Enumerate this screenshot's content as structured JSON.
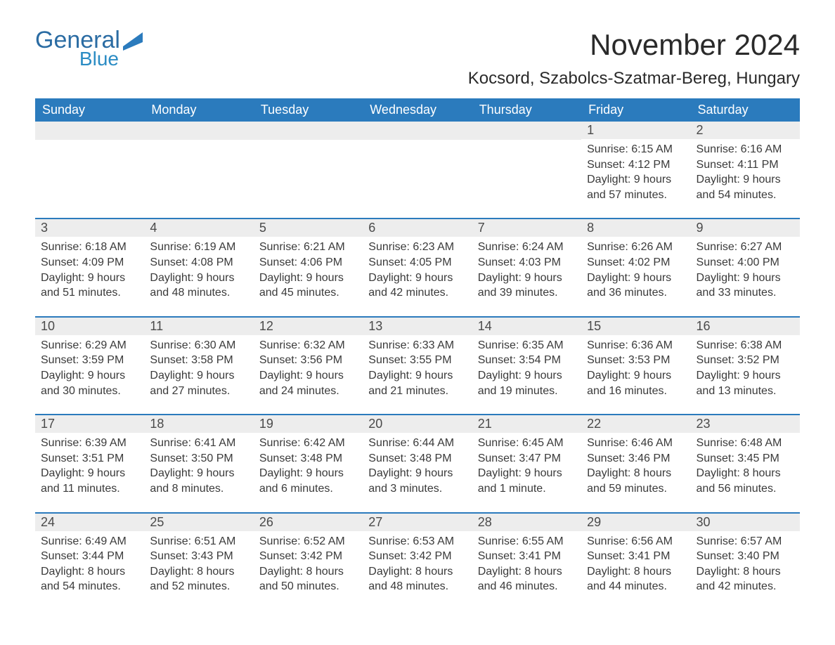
{
  "brand": {
    "name1": "General",
    "name2": "Blue",
    "color1": "#2b6ca3",
    "color2": "#2b8cc4"
  },
  "title": "November 2024",
  "location": "Kocsord, Szabolcs-Szatmar-Bereg, Hungary",
  "accent_color": "#2b7bbd",
  "stripe_color": "#ededed",
  "day_names": [
    "Sunday",
    "Monday",
    "Tuesday",
    "Wednesday",
    "Thursday",
    "Friday",
    "Saturday"
  ],
  "weeks": [
    [
      null,
      null,
      null,
      null,
      null,
      {
        "n": "1",
        "sunrise": "Sunrise: 6:15 AM",
        "sunset": "Sunset: 4:12 PM",
        "dl1": "Daylight: 9 hours",
        "dl2": "and 57 minutes."
      },
      {
        "n": "2",
        "sunrise": "Sunrise: 6:16 AM",
        "sunset": "Sunset: 4:11 PM",
        "dl1": "Daylight: 9 hours",
        "dl2": "and 54 minutes."
      }
    ],
    [
      {
        "n": "3",
        "sunrise": "Sunrise: 6:18 AM",
        "sunset": "Sunset: 4:09 PM",
        "dl1": "Daylight: 9 hours",
        "dl2": "and 51 minutes."
      },
      {
        "n": "4",
        "sunrise": "Sunrise: 6:19 AM",
        "sunset": "Sunset: 4:08 PM",
        "dl1": "Daylight: 9 hours",
        "dl2": "and 48 minutes."
      },
      {
        "n": "5",
        "sunrise": "Sunrise: 6:21 AM",
        "sunset": "Sunset: 4:06 PM",
        "dl1": "Daylight: 9 hours",
        "dl2": "and 45 minutes."
      },
      {
        "n": "6",
        "sunrise": "Sunrise: 6:23 AM",
        "sunset": "Sunset: 4:05 PM",
        "dl1": "Daylight: 9 hours",
        "dl2": "and 42 minutes."
      },
      {
        "n": "7",
        "sunrise": "Sunrise: 6:24 AM",
        "sunset": "Sunset: 4:03 PM",
        "dl1": "Daylight: 9 hours",
        "dl2": "and 39 minutes."
      },
      {
        "n": "8",
        "sunrise": "Sunrise: 6:26 AM",
        "sunset": "Sunset: 4:02 PM",
        "dl1": "Daylight: 9 hours",
        "dl2": "and 36 minutes."
      },
      {
        "n": "9",
        "sunrise": "Sunrise: 6:27 AM",
        "sunset": "Sunset: 4:00 PM",
        "dl1": "Daylight: 9 hours",
        "dl2": "and 33 minutes."
      }
    ],
    [
      {
        "n": "10",
        "sunrise": "Sunrise: 6:29 AM",
        "sunset": "Sunset: 3:59 PM",
        "dl1": "Daylight: 9 hours",
        "dl2": "and 30 minutes."
      },
      {
        "n": "11",
        "sunrise": "Sunrise: 6:30 AM",
        "sunset": "Sunset: 3:58 PM",
        "dl1": "Daylight: 9 hours",
        "dl2": "and 27 minutes."
      },
      {
        "n": "12",
        "sunrise": "Sunrise: 6:32 AM",
        "sunset": "Sunset: 3:56 PM",
        "dl1": "Daylight: 9 hours",
        "dl2": "and 24 minutes."
      },
      {
        "n": "13",
        "sunrise": "Sunrise: 6:33 AM",
        "sunset": "Sunset: 3:55 PM",
        "dl1": "Daylight: 9 hours",
        "dl2": "and 21 minutes."
      },
      {
        "n": "14",
        "sunrise": "Sunrise: 6:35 AM",
        "sunset": "Sunset: 3:54 PM",
        "dl1": "Daylight: 9 hours",
        "dl2": "and 19 minutes."
      },
      {
        "n": "15",
        "sunrise": "Sunrise: 6:36 AM",
        "sunset": "Sunset: 3:53 PM",
        "dl1": "Daylight: 9 hours",
        "dl2": "and 16 minutes."
      },
      {
        "n": "16",
        "sunrise": "Sunrise: 6:38 AM",
        "sunset": "Sunset: 3:52 PM",
        "dl1": "Daylight: 9 hours",
        "dl2": "and 13 minutes."
      }
    ],
    [
      {
        "n": "17",
        "sunrise": "Sunrise: 6:39 AM",
        "sunset": "Sunset: 3:51 PM",
        "dl1": "Daylight: 9 hours",
        "dl2": "and 11 minutes."
      },
      {
        "n": "18",
        "sunrise": "Sunrise: 6:41 AM",
        "sunset": "Sunset: 3:50 PM",
        "dl1": "Daylight: 9 hours",
        "dl2": "and 8 minutes."
      },
      {
        "n": "19",
        "sunrise": "Sunrise: 6:42 AM",
        "sunset": "Sunset: 3:48 PM",
        "dl1": "Daylight: 9 hours",
        "dl2": "and 6 minutes."
      },
      {
        "n": "20",
        "sunrise": "Sunrise: 6:44 AM",
        "sunset": "Sunset: 3:48 PM",
        "dl1": "Daylight: 9 hours",
        "dl2": "and 3 minutes."
      },
      {
        "n": "21",
        "sunrise": "Sunrise: 6:45 AM",
        "sunset": "Sunset: 3:47 PM",
        "dl1": "Daylight: 9 hours",
        "dl2": "and 1 minute."
      },
      {
        "n": "22",
        "sunrise": "Sunrise: 6:46 AM",
        "sunset": "Sunset: 3:46 PM",
        "dl1": "Daylight: 8 hours",
        "dl2": "and 59 minutes."
      },
      {
        "n": "23",
        "sunrise": "Sunrise: 6:48 AM",
        "sunset": "Sunset: 3:45 PM",
        "dl1": "Daylight: 8 hours",
        "dl2": "and 56 minutes."
      }
    ],
    [
      {
        "n": "24",
        "sunrise": "Sunrise: 6:49 AM",
        "sunset": "Sunset: 3:44 PM",
        "dl1": "Daylight: 8 hours",
        "dl2": "and 54 minutes."
      },
      {
        "n": "25",
        "sunrise": "Sunrise: 6:51 AM",
        "sunset": "Sunset: 3:43 PM",
        "dl1": "Daylight: 8 hours",
        "dl2": "and 52 minutes."
      },
      {
        "n": "26",
        "sunrise": "Sunrise: 6:52 AM",
        "sunset": "Sunset: 3:42 PM",
        "dl1": "Daylight: 8 hours",
        "dl2": "and 50 minutes."
      },
      {
        "n": "27",
        "sunrise": "Sunrise: 6:53 AM",
        "sunset": "Sunset: 3:42 PM",
        "dl1": "Daylight: 8 hours",
        "dl2": "and 48 minutes."
      },
      {
        "n": "28",
        "sunrise": "Sunrise: 6:55 AM",
        "sunset": "Sunset: 3:41 PM",
        "dl1": "Daylight: 8 hours",
        "dl2": "and 46 minutes."
      },
      {
        "n": "29",
        "sunrise": "Sunrise: 6:56 AM",
        "sunset": "Sunset: 3:41 PM",
        "dl1": "Daylight: 8 hours",
        "dl2": "and 44 minutes."
      },
      {
        "n": "30",
        "sunrise": "Sunrise: 6:57 AM",
        "sunset": "Sunset: 3:40 PM",
        "dl1": "Daylight: 8 hours",
        "dl2": "and 42 minutes."
      }
    ]
  ]
}
